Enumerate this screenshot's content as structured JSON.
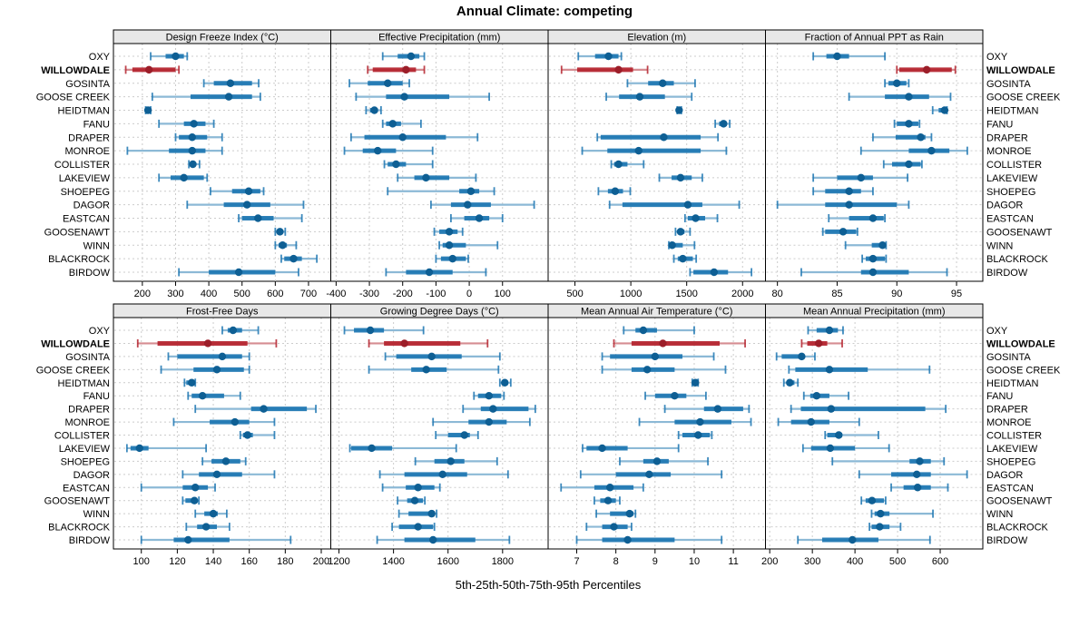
{
  "title": "Annual Climate: competing",
  "xlabel": "5th-25th-50th-75th-95th Percentiles",
  "colors": {
    "blue": "#1c76b2",
    "blue_light": "#8cb9d6",
    "blue_dot": "#0e5f94",
    "red": "#b4232e",
    "red_light": "#d68d92",
    "red_dot": "#9c1e29",
    "header_bg": "#e8e8e8",
    "panel_border": "#000000",
    "grid": "#cccccc",
    "text": "#000000"
  },
  "chart_data": {
    "type": "dotplot-percentile-lattice",
    "title": "Annual Climate: competing",
    "xlabel": "5th-25th-50th-75th-95th Percentiles",
    "percentiles_order": [
      "5th",
      "25th",
      "50th",
      "75th",
      "95th"
    ],
    "legend_position": "none",
    "grid": "dashed",
    "highlight": "WILLOWDALE",
    "categories": [
      "OXY",
      "WILLOWDALE",
      "GOSINTA",
      "GOOSE CREEK",
      "HEIDTMAN",
      "FANU",
      "DRAPER",
      "MONROE",
      "COLLISTER",
      "LAKEVIEW",
      "SHOEPEG",
      "DAGOR",
      "EASTCAN",
      "GOOSENAWT",
      "WINN",
      "BLACKROCK",
      "BIRDOW"
    ],
    "panels": [
      {
        "title": "Design Freeze Index (°C)",
        "ticks": [
          200,
          300,
          400,
          500,
          600,
          700
        ],
        "xlim": [
          113,
          767
        ],
        "values": [
          [
            225,
            270,
            300,
            325,
            335
          ],
          [
            150,
            170,
            220,
            300,
            310
          ],
          [
            385,
            415,
            465,
            530,
            550
          ],
          [
            230,
            345,
            460,
            530,
            555
          ],
          [
            210,
            213,
            217,
            221,
            225
          ],
          [
            250,
            325,
            355,
            390,
            415
          ],
          [
            300,
            310,
            350,
            395,
            440
          ],
          [
            155,
            280,
            350,
            390,
            440
          ],
          [
            340,
            348,
            352,
            360,
            372
          ],
          [
            250,
            285,
            325,
            385,
            395
          ],
          [
            405,
            470,
            520,
            555,
            565
          ],
          [
            335,
            445,
            515,
            585,
            685
          ],
          [
            490,
            500,
            548,
            595,
            680
          ],
          [
            600,
            608,
            614,
            620,
            630
          ],
          [
            600,
            610,
            622,
            635,
            663
          ],
          [
            618,
            627,
            655,
            680,
            725
          ],
          [
            310,
            400,
            490,
            600,
            670
          ]
        ]
      },
      {
        "title": "Effective Precipitation (mm)",
        "ticks": [
          -400,
          -300,
          -200,
          -100,
          0,
          100
        ],
        "xlim": [
          -416,
          237
        ],
        "values": [
          [
            -260,
            -215,
            -175,
            -150,
            -135
          ],
          [
            -305,
            -290,
            -190,
            -160,
            -135
          ],
          [
            -360,
            -305,
            -245,
            -200,
            -180
          ],
          [
            -340,
            -250,
            -195,
            -60,
            60
          ],
          [
            -310,
            -298,
            -285,
            -275,
            -265
          ],
          [
            -260,
            -250,
            -230,
            -205,
            -145
          ],
          [
            -355,
            -315,
            -200,
            -70,
            25
          ],
          [
            -375,
            -320,
            -275,
            -220,
            -110
          ],
          [
            -255,
            -245,
            -220,
            -190,
            -110
          ],
          [
            -215,
            -165,
            -130,
            -60,
            20
          ],
          [
            -245,
            -30,
            5,
            30,
            75
          ],
          [
            -115,
            -55,
            -5,
            65,
            195
          ],
          [
            -55,
            -15,
            30,
            60,
            100
          ],
          [
            -105,
            -90,
            -60,
            -35,
            -20
          ],
          [
            -90,
            -80,
            -60,
            -10,
            85
          ],
          [
            -100,
            -85,
            -50,
            -10,
            -3
          ],
          [
            -250,
            -190,
            -120,
            -50,
            50
          ]
        ]
      },
      {
        "title": "Elevation (m)",
        "ticks": [
          500,
          1000,
          1500,
          2000
        ],
        "xlim": [
          260,
          2205
        ],
        "values": [
          [
            530,
            680,
            800,
            890,
            915
          ],
          [
            380,
            520,
            890,
            1020,
            1150
          ],
          [
            970,
            1155,
            1285,
            1385,
            1575
          ],
          [
            780,
            895,
            1080,
            1305,
            1545
          ],
          [
            1415,
            1425,
            1432,
            1442,
            1452
          ],
          [
            1755,
            1790,
            1830,
            1860,
            1885
          ],
          [
            700,
            730,
            1295,
            1625,
            1780
          ],
          [
            565,
            790,
            1070,
            1625,
            1855
          ],
          [
            825,
            850,
            890,
            970,
            1115
          ],
          [
            1255,
            1365,
            1445,
            1545,
            1640
          ],
          [
            710,
            795,
            860,
            930,
            995
          ],
          [
            810,
            925,
            1510,
            1640,
            1970
          ],
          [
            1485,
            1510,
            1580,
            1665,
            1775
          ],
          [
            1400,
            1425,
            1445,
            1480,
            1530
          ],
          [
            1340,
            1350,
            1370,
            1465,
            1570
          ],
          [
            1385,
            1420,
            1465,
            1555,
            1585
          ],
          [
            1530,
            1560,
            1745,
            1870,
            2080
          ]
        ]
      },
      {
        "title": "Fraction of Annual PPT as Rain",
        "ticks": [
          80,
          85,
          90,
          95
        ],
        "xlim": [
          79,
          97.2
        ],
        "values": [
          [
            83,
            84.1,
            85,
            86,
            89
          ],
          [
            90,
            90.2,
            92.5,
            94.6,
            94.9
          ],
          [
            89,
            89.3,
            90,
            90.8,
            91
          ],
          [
            86,
            89,
            91,
            92.7,
            94.5
          ],
          [
            93,
            93.5,
            94,
            94.1,
            94.2
          ],
          [
            89.8,
            90,
            91,
            91.8,
            91.9
          ],
          [
            88,
            89.9,
            92,
            92.4,
            92.9
          ],
          [
            87,
            91,
            92.9,
            94.4,
            95.9
          ],
          [
            88.9,
            89.6,
            91,
            92,
            92.1
          ],
          [
            83,
            85,
            87,
            88,
            90.9
          ],
          [
            83,
            84,
            86,
            87,
            88
          ],
          [
            80,
            84,
            86,
            90,
            91
          ],
          [
            84.3,
            86,
            88,
            88.9,
            89
          ],
          [
            83.8,
            84,
            85.5,
            86.6,
            86.7
          ],
          [
            85.7,
            87.9,
            88.8,
            89,
            89.1
          ],
          [
            87.1,
            87.4,
            88,
            89,
            89.1
          ],
          [
            82,
            87,
            88,
            91,
            94.2
          ]
        ]
      },
      {
        "title": "Frost-Free Days",
        "ticks": [
          100,
          120,
          140,
          160,
          180,
          200
        ],
        "xlim": [
          84.5,
          205.3
        ],
        "values": [
          [
            145,
            148,
            151,
            156,
            165
          ],
          [
            98,
            109,
            137,
            159,
            175
          ],
          [
            115,
            120,
            145,
            156,
            160
          ],
          [
            111,
            129,
            142,
            157,
            160
          ],
          [
            124,
            125,
            128,
            129,
            130
          ],
          [
            126,
            128,
            134,
            146,
            155
          ],
          [
            130,
            161,
            168,
            192,
            197
          ],
          [
            118,
            138,
            152,
            160,
            174
          ],
          [
            155,
            156.5,
            159,
            162,
            174
          ],
          [
            92,
            94,
            99,
            104,
            136
          ],
          [
            134,
            139,
            147,
            155,
            158
          ],
          [
            123,
            132,
            142,
            156,
            174
          ],
          [
            100,
            123,
            130,
            137,
            141
          ],
          [
            123,
            124.5,
            129.5,
            131,
            132
          ],
          [
            130,
            135,
            140,
            142.5,
            147.5
          ],
          [
            125,
            131,
            136,
            142,
            149
          ],
          [
            100,
            118,
            126,
            149,
            183
          ]
        ]
      },
      {
        "title": "Growing Degree Days (°C)",
        "ticks": [
          1200,
          1400,
          1600,
          1800
        ],
        "xlim": [
          1170,
          1967
        ],
        "values": [
          [
            1220,
            1255,
            1315,
            1365,
            1510
          ],
          [
            1310,
            1365,
            1440,
            1645,
            1745
          ],
          [
            1370,
            1410,
            1540,
            1650,
            1790
          ],
          [
            1310,
            1465,
            1520,
            1595,
            1785
          ],
          [
            1790,
            1800,
            1808,
            1820,
            1830
          ],
          [
            1695,
            1710,
            1750,
            1795,
            1805
          ],
          [
            1655,
            1720,
            1765,
            1895,
            1920
          ],
          [
            1545,
            1675,
            1750,
            1815,
            1900
          ],
          [
            1555,
            1600,
            1660,
            1680,
            1710
          ],
          [
            1240,
            1245,
            1320,
            1395,
            1630
          ],
          [
            1480,
            1550,
            1610,
            1660,
            1780
          ],
          [
            1350,
            1440,
            1580,
            1670,
            1820
          ],
          [
            1360,
            1445,
            1490,
            1550,
            1570
          ],
          [
            1415,
            1450,
            1478,
            1508,
            1515
          ],
          [
            1420,
            1455,
            1540,
            1552,
            1558
          ],
          [
            1395,
            1420,
            1490,
            1545,
            1550
          ],
          [
            1340,
            1440,
            1545,
            1700,
            1825
          ]
        ]
      },
      {
        "title": "Mean Annual Air Temperature (°C)",
        "ticks": [
          7,
          8,
          9,
          10,
          11
        ],
        "xlim": [
          6.27,
          11.82
        ],
        "values": [
          [
            8.2,
            8.5,
            8.7,
            9.05,
            10.0
          ],
          [
            7.95,
            8.4,
            9.2,
            10.65,
            11.3
          ],
          [
            7.65,
            7.85,
            9.0,
            9.7,
            10.5
          ],
          [
            7.65,
            8.4,
            8.8,
            9.5,
            10.8
          ],
          [
            9.95,
            10.0,
            10.03,
            10.06,
            10.1
          ],
          [
            8.75,
            9.0,
            9.5,
            9.8,
            10.3
          ],
          [
            9.25,
            10.25,
            10.6,
            11.25,
            11.4
          ],
          [
            8.6,
            9.5,
            10.15,
            10.95,
            11.45
          ],
          [
            9.6,
            9.7,
            10.1,
            10.4,
            10.45
          ],
          [
            7.15,
            7.25,
            7.65,
            8.3,
            9.6
          ],
          [
            8.1,
            8.7,
            9.05,
            9.35,
            10.35
          ],
          [
            7.1,
            8.0,
            8.85,
            9.4,
            10.7
          ],
          [
            6.6,
            7.45,
            7.85,
            8.45,
            8.7
          ],
          [
            7.45,
            7.6,
            7.8,
            8.0,
            8.1
          ],
          [
            7.5,
            7.85,
            8.35,
            8.45,
            8.5
          ],
          [
            7.25,
            7.65,
            7.95,
            8.3,
            8.4
          ],
          [
            7.0,
            7.65,
            8.3,
            9.5,
            10.7
          ]
        ]
      },
      {
        "title": "Mean Annual Precipitation (mm)",
        "ticks": [
          200,
          300,
          400,
          500,
          600
        ],
        "xlim": [
          190,
          700
        ],
        "values": [
          [
            290,
            310,
            340,
            360,
            372
          ],
          [
            275,
            288,
            315,
            335,
            370
          ],
          [
            216,
            228,
            275,
            280,
            306
          ],
          [
            245,
            260,
            340,
            430,
            575
          ],
          [
            233,
            240,
            247,
            258,
            266
          ],
          [
            280,
            295,
            310,
            340,
            385
          ],
          [
            250,
            273,
            344,
            565,
            613
          ],
          [
            220,
            250,
            297,
            340,
            410
          ],
          [
            330,
            335,
            362,
            370,
            455
          ],
          [
            278,
            297,
            342,
            400,
            480
          ],
          [
            347,
            528,
            552,
            578,
            609
          ],
          [
            410,
            485,
            545,
            578,
            663
          ],
          [
            485,
            514,
            547,
            578,
            618
          ],
          [
            415,
            425,
            440,
            468,
            472
          ],
          [
            439,
            446,
            460,
            481,
            583
          ],
          [
            434,
            439,
            458,
            481,
            507
          ],
          [
            266,
            323,
            394,
            455,
            576
          ]
        ]
      }
    ]
  }
}
